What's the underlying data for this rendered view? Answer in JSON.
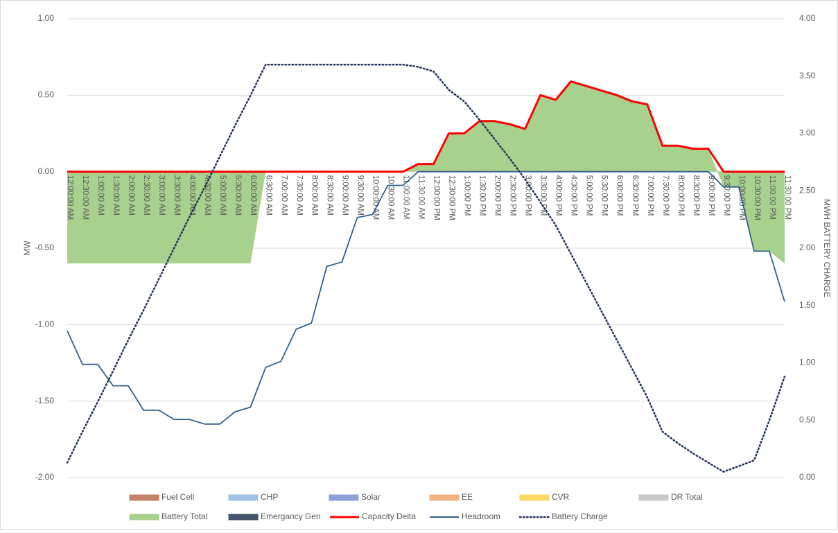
{
  "chart_data": {
    "type": "area",
    "y_label": "MW",
    "y2_label": "MWH BATTERY CHARGE",
    "categories": [
      "12:00:00 AM",
      "12:30:00 AM",
      "1:00:00 AM",
      "1:30:00 AM",
      "2:00:00 AM",
      "2:30:00 AM",
      "3:00:00 AM",
      "3:30:00 AM",
      "4:00:00 AM",
      "4:30:00 AM",
      "5:00:00 AM",
      "5:30:00 AM",
      "6:00:00 AM",
      "6:30:00 AM",
      "7:00:00 AM",
      "7:30:00 AM",
      "8:00:00 AM",
      "8:30:00 AM",
      "9:00:00 AM",
      "9:30:00 AM",
      "10:00:00 AM",
      "10:30:00 AM",
      "11:00:00 AM",
      "11:30:00 AM",
      "12:00:00 PM",
      "12:30:00 PM",
      "1:00:00 PM",
      "1:30:00 PM",
      "2:00:00 PM",
      "2:30:00 PM",
      "3:00:00 PM",
      "3:30:00 PM",
      "4:00:00 PM",
      "4:30:00 PM",
      "5:00:00 PM",
      "5:30:00 PM",
      "6:00:00 PM",
      "6:30:00 PM",
      "7:00:00 PM",
      "7:30:00 PM",
      "8:00:00 PM",
      "8:30:00 PM",
      "9:00:00 PM",
      "9:30:00 PM",
      "10:00:00 PM",
      "10:30:00 PM",
      "11:00:00 PM",
      "11:30:00 PM"
    ],
    "series": [
      {
        "name": "Fuel Cell",
        "color": "#c5806a",
        "style": "area"
      },
      {
        "name": "CHP",
        "color": "#9dc3e6",
        "style": "area"
      },
      {
        "name": "Solar",
        "color": "#8f9fd8",
        "style": "area"
      },
      {
        "name": "EE",
        "color": "#f4b183",
        "style": "area"
      },
      {
        "name": "CVR",
        "color": "#ffd966",
        "style": "area"
      },
      {
        "name": "DR Total",
        "color": "#c9c9c9",
        "style": "area"
      },
      {
        "name": "Battery Total",
        "color": "#a9d18e",
        "style": "area",
        "values": [
          -0.6,
          -0.6,
          -0.6,
          -0.6,
          -0.6,
          -0.6,
          -0.6,
          -0.6,
          -0.6,
          -0.6,
          -0.6,
          -0.6,
          -0.6,
          0,
          0,
          0,
          0,
          0,
          0,
          0,
          0,
          0,
          0,
          0.05,
          0.05,
          0.25,
          0.25,
          0.33,
          0.33,
          0.31,
          0.28,
          0.5,
          0.47,
          0.59,
          0.56,
          0.53,
          0.5,
          0.46,
          0.44,
          0.17,
          0.17,
          0.15,
          0.15,
          -0.1,
          -0.1,
          -0.52,
          -0.52,
          -0.6
        ]
      },
      {
        "name": "Emergancy Gen",
        "color": "#44546a",
        "style": "area"
      },
      {
        "name": "Capacity Delta",
        "color": "#ff0000",
        "style": "line",
        "values": [
          0,
          0,
          0,
          0,
          0,
          0,
          0,
          0,
          0,
          0,
          0,
          0,
          0,
          0,
          0,
          0,
          0,
          0,
          0,
          0,
          0,
          0,
          0,
          0.05,
          0.05,
          0.25,
          0.25,
          0.33,
          0.33,
          0.31,
          0.28,
          0.5,
          0.47,
          0.59,
          0.56,
          0.53,
          0.5,
          0.46,
          0.44,
          0.17,
          0.17,
          0.15,
          0.15,
          0,
          0,
          0,
          0,
          0
        ]
      },
      {
        "name": "Headroom",
        "color": "#2f5f8f",
        "style": "line",
        "values": [
          -1.04,
          -1.26,
          -1.26,
          -1.4,
          -1.4,
          -1.56,
          -1.56,
          -1.62,
          -1.62,
          -1.65,
          -1.65,
          -1.57,
          -1.54,
          -1.28,
          -1.24,
          -1.03,
          -0.99,
          -0.62,
          -0.59,
          -0.3,
          -0.28,
          -0.09,
          -0.09,
          0,
          0,
          0,
          0,
          0,
          0,
          0,
          0,
          0,
          0,
          0,
          0,
          0,
          0,
          0,
          0,
          0,
          0,
          0,
          0,
          -0.1,
          -0.1,
          -0.52,
          -0.52,
          -0.85
        ]
      },
      {
        "name": "Battery Charge",
        "color": "#1f2f5a",
        "style": "dotted",
        "axis": "y2",
        "values": [
          0.13,
          0.4,
          0.66,
          0.93,
          1.2,
          1.46,
          1.73,
          2.0,
          2.27,
          2.53,
          2.8,
          3.07,
          3.33,
          3.6,
          3.6,
          3.6,
          3.6,
          3.6,
          3.6,
          3.6,
          3.6,
          3.6,
          3.6,
          3.58,
          3.54,
          3.38,
          3.28,
          3.12,
          2.95,
          2.78,
          2.6,
          2.4,
          2.2,
          1.95,
          1.7,
          1.45,
          1.2,
          0.95,
          0.7,
          0.4,
          0.3,
          0.21,
          0.13,
          0.05,
          0.1,
          0.15,
          0.5,
          0.88
        ]
      }
    ],
    "ylim": [
      -2,
      1
    ],
    "yticks": [
      {
        "value": -2,
        "label": "-2.00"
      },
      {
        "value": -1.5,
        "label": "-1.50"
      },
      {
        "value": -1,
        "label": "-1.00"
      },
      {
        "value": -0.5,
        "label": "-0.50"
      },
      {
        "value": 0,
        "label": "0.00"
      },
      {
        "value": 0.5,
        "label": "0.50"
      },
      {
        "value": 1,
        "label": "1.00"
      }
    ],
    "y2lim": [
      0,
      4
    ],
    "y2ticks": [
      {
        "value": 0,
        "label": "0.00"
      },
      {
        "value": 0.5,
        "label": "0.50"
      },
      {
        "value": 1,
        "label": "1.00"
      },
      {
        "value": 1.5,
        "label": "1.50"
      },
      {
        "value": 2,
        "label": "2.00"
      },
      {
        "value": 2.5,
        "label": "2.50"
      },
      {
        "value": 3,
        "label": "3.00"
      },
      {
        "value": 3.5,
        "label": "3.50"
      },
      {
        "value": 4,
        "label": "4.00"
      }
    ],
    "grid": true
  }
}
